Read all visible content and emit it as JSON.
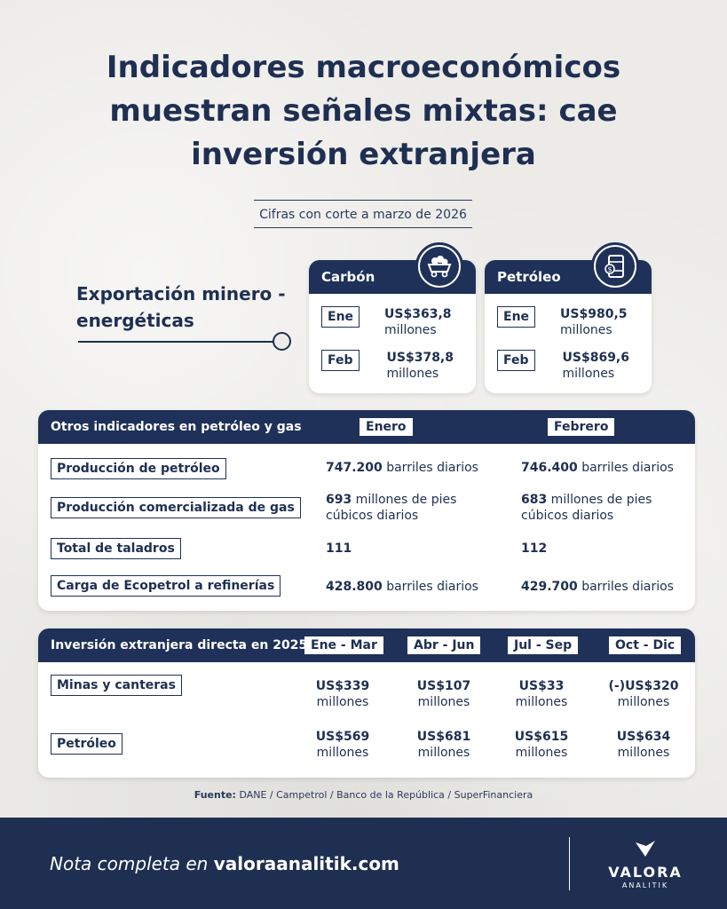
{
  "title": "Indicadores macroeconómicos muestran señales mixtas: cae inversión extranjera",
  "subtitle": "Cifras con corte a marzo de 2026",
  "export": {
    "label": "Exportación minero - energéticas",
    "cards": [
      {
        "name": "Carbón",
        "icon": "coal-cart-icon",
        "rows": [
          {
            "month": "Ene",
            "value": "US$363,8",
            "unit": "millones"
          },
          {
            "month": "Feb",
            "value": "US$378,8",
            "unit": "millones"
          }
        ]
      },
      {
        "name": "Petróleo",
        "icon": "oil-barrel-icon",
        "rows": [
          {
            "month": "Ene",
            "value": "US$980,5",
            "unit": "millones"
          },
          {
            "month": "Feb",
            "value": "US$869,6",
            "unit": "millones"
          }
        ]
      }
    ]
  },
  "oil_gas": {
    "header": "Otros indicadores en petróleo y gas",
    "columns": [
      "Enero",
      "Febrero"
    ],
    "rows": [
      {
        "label": "Producción de petróleo",
        "enero": {
          "num": "747.200",
          "text": " barriles diarios"
        },
        "febrero": {
          "num": "746.400",
          "text": " barriles diarios"
        }
      },
      {
        "label": "Producción comercializada de gas",
        "enero": {
          "num": "693",
          "text": " millones de pies",
          "text2": "cúbicos diarios"
        },
        "febrero": {
          "num": "683",
          "text": " millones de pies",
          "text2": "cúbicos diarios"
        }
      },
      {
        "label": "Total de taladros",
        "enero": {
          "num": "111",
          "text": ""
        },
        "febrero": {
          "num": "112",
          "text": ""
        }
      },
      {
        "label": "Carga de Ecopetrol a refinerías",
        "enero": {
          "num": "428.800",
          "text": " barriles diarios"
        },
        "febrero": {
          "num": "429.700",
          "text": " barriles diarios"
        }
      }
    ]
  },
  "fdi": {
    "header": "Inversión extranjera directa en 2025",
    "columns": [
      "Ene - Mar",
      "Abr - Jun",
      "Jul - Sep",
      "Oct - Dic"
    ],
    "rows": [
      {
        "label": "Minas y canteras",
        "values": [
          "US$339",
          "US$107",
          "US$33",
          "(-)US$320"
        ],
        "unit": "millones"
      },
      {
        "label": "Petróleo",
        "values": [
          "US$569",
          "US$681",
          "US$615",
          "US$634"
        ],
        "unit": "millones"
      }
    ]
  },
  "source": {
    "label": "Fuente:",
    "text": " DANE / Campetrol / Banco de la República / SuperFinanciera"
  },
  "footer": {
    "lead": "Nota completa en ",
    "link": "valoraanalitik.com",
    "logo_name": "VALORA",
    "logo_sub": "ANALITIK"
  },
  "colors": {
    "navy": "#1f3158",
    "background": "#ecebe8",
    "card": "#ffffff"
  }
}
